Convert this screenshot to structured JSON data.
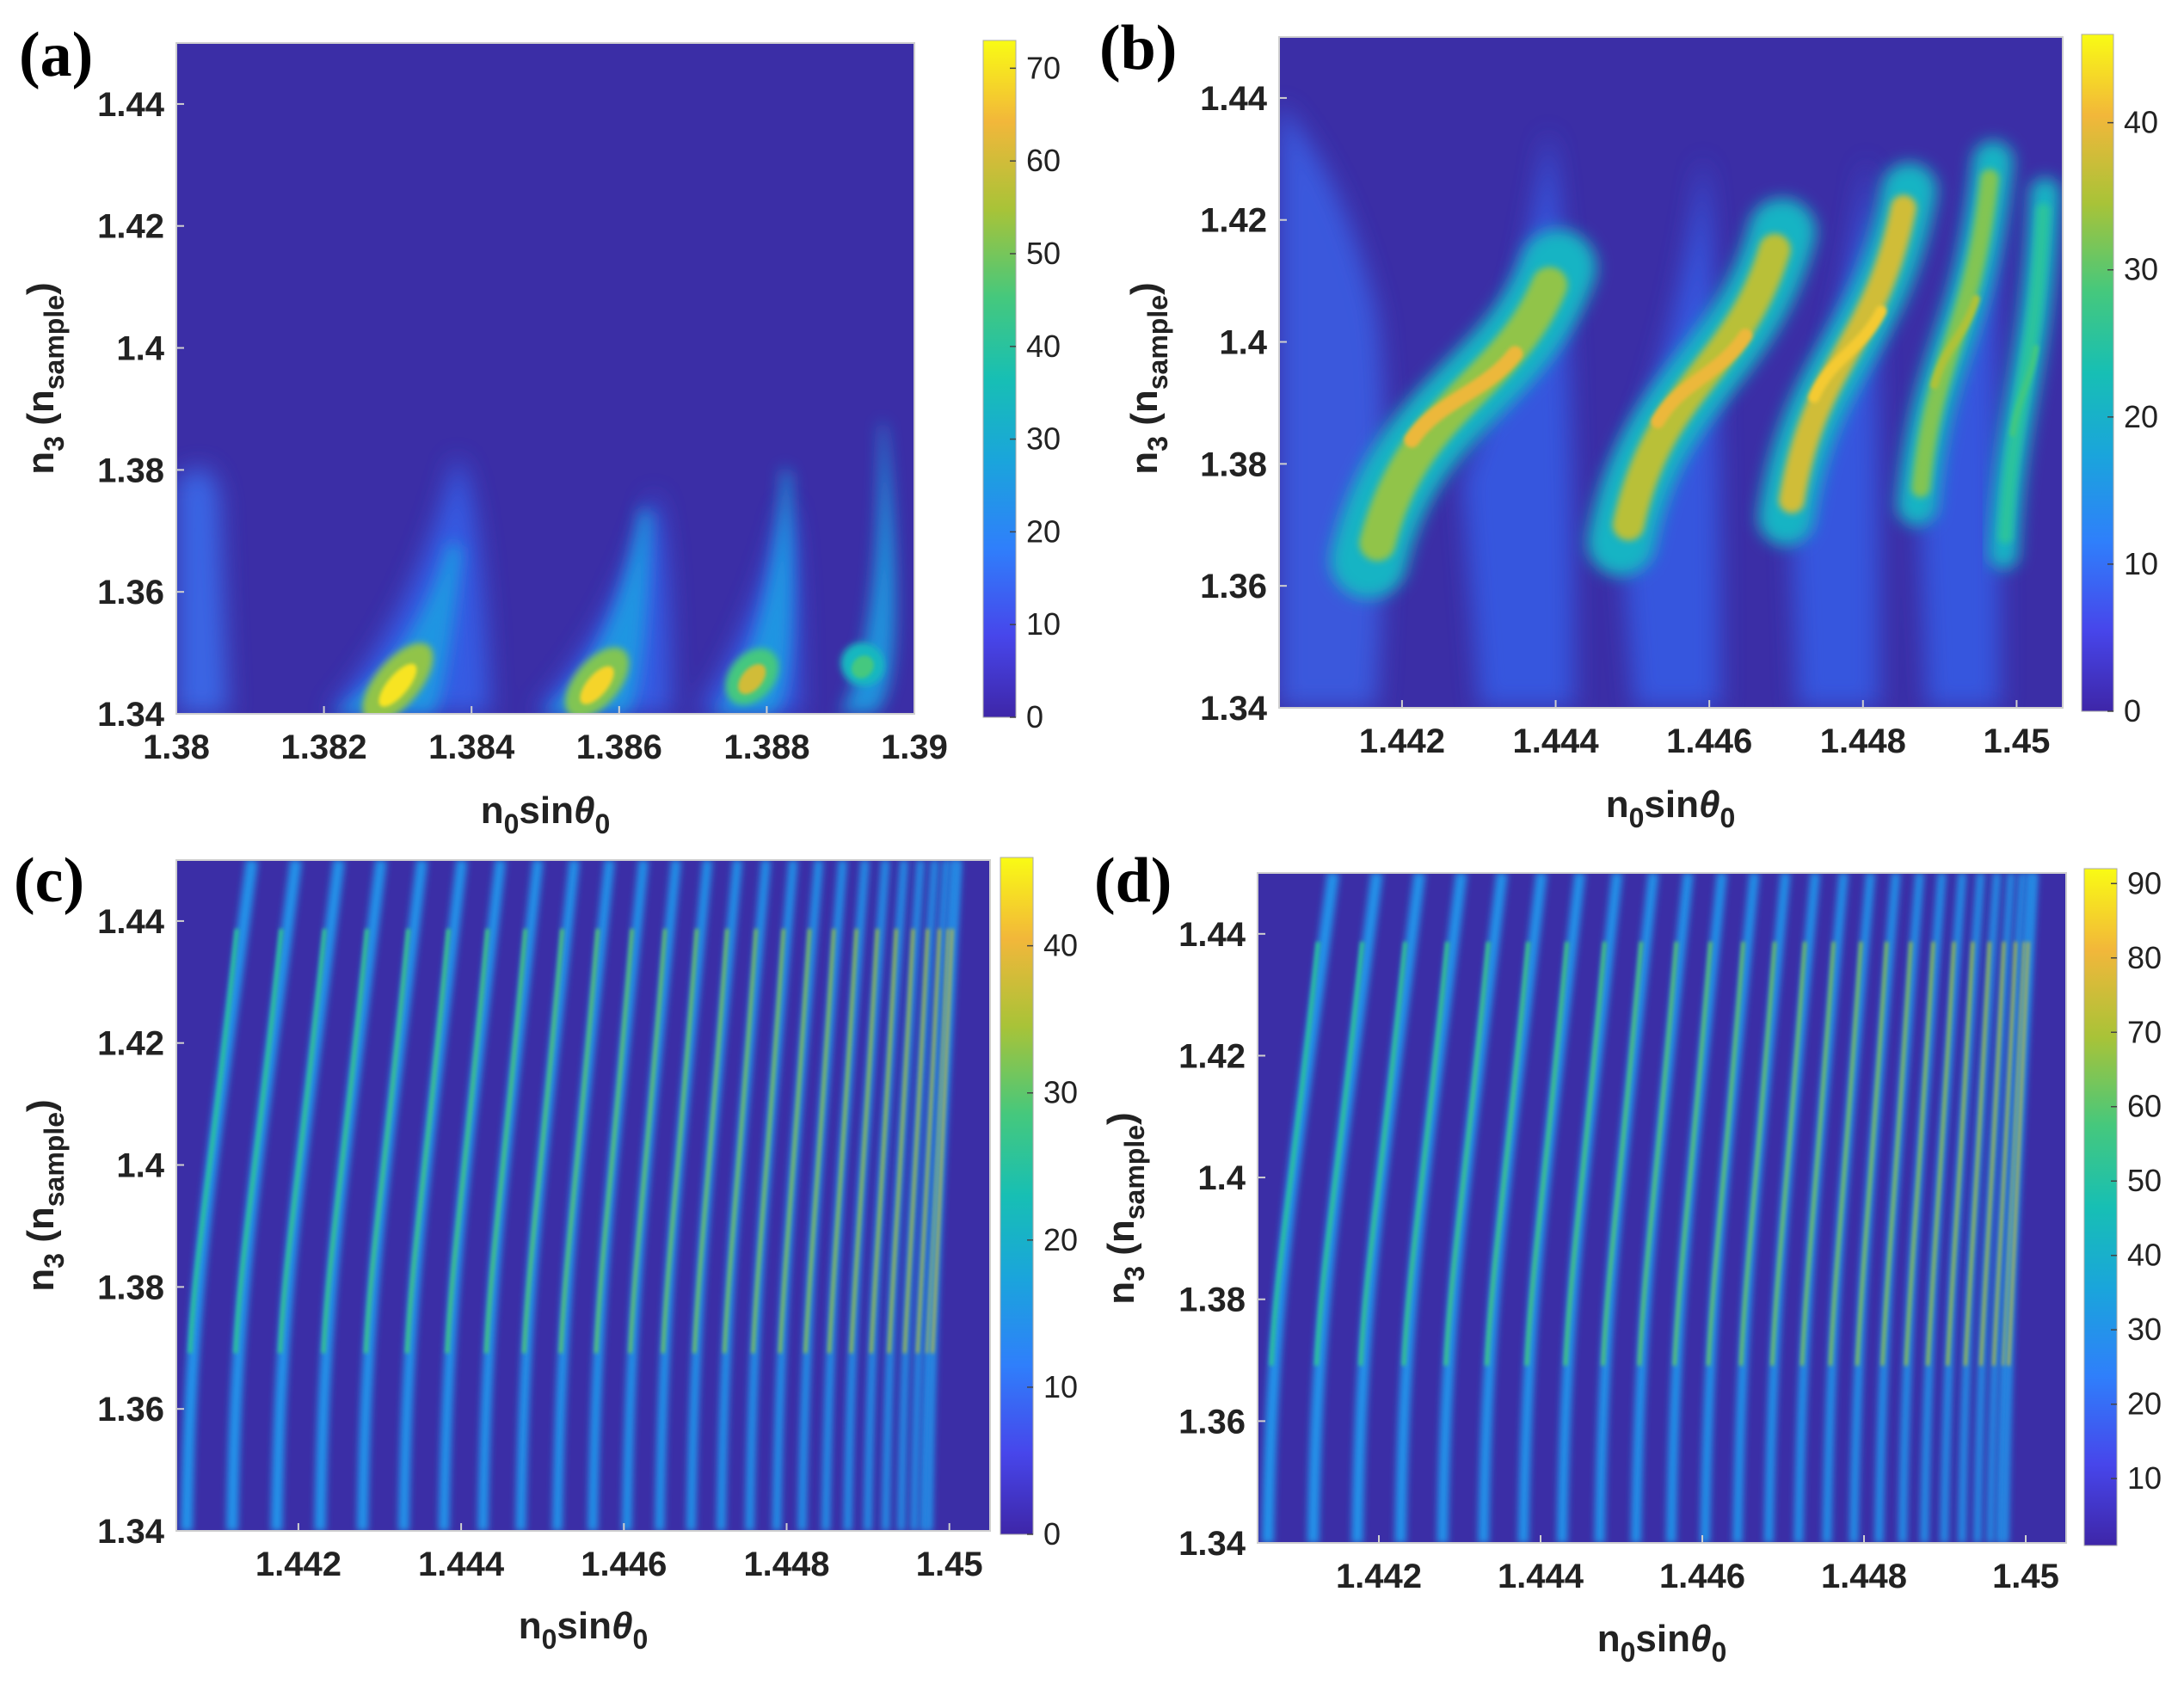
{
  "chart_data": [
    {
      "type": "heatmap",
      "panel_label": "(a)",
      "xlabel": "n0sinθ0",
      "ylabel": "n3 (nsample)",
      "xlim": [
        1.38,
        1.39
      ],
      "ylim": [
        1.34,
        1.45
      ],
      "x_ticks": [
        "1.38",
        "1.382",
        "1.384",
        "1.386",
        "1.388",
        "1.39"
      ],
      "y_ticks": [
        "1.34",
        "1.36",
        "1.38",
        "1.4",
        "1.42",
        "1.44"
      ],
      "colorbar": {
        "min": 0,
        "max": 73,
        "ticks": [
          "0",
          "10",
          "20",
          "30",
          "40",
          "50",
          "60",
          "70"
        ]
      },
      "resonances": [
        {
          "x_peak": 1.383,
          "y_peak": 1.343,
          "max_value": 70
        },
        {
          "x_peak": 1.3857,
          "y_peak": 1.343,
          "max_value": 68
        },
        {
          "x_peak": 1.3878,
          "y_peak": 1.344,
          "max_value": 60
        },
        {
          "x_peak": 1.3893,
          "y_peak": 1.346,
          "max_value": 45
        }
      ]
    },
    {
      "type": "heatmap",
      "panel_label": "(b)",
      "xlabel": "n0sinθ0",
      "ylabel": "n3 (nsample)",
      "xlim": [
        1.4404,
        1.4506
      ],
      "ylim": [
        1.34,
        1.45
      ],
      "x_ticks": [
        "1.442",
        "1.444",
        "1.446",
        "1.448",
        "1.45"
      ],
      "y_ticks": [
        "1.34",
        "1.36",
        "1.38",
        "1.4",
        "1.42",
        "1.44"
      ],
      "colorbar": {
        "min": 0,
        "max": 46,
        "ticks": [
          "0",
          "10",
          "20",
          "30",
          "40"
        ]
      },
      "resonances": [
        {
          "x_peak": 1.4428,
          "y_peak": 1.391,
          "max_value": 40
        },
        {
          "x_peak": 1.4459,
          "y_peak": 1.394,
          "max_value": 40
        },
        {
          "x_peak": 1.4478,
          "y_peak": 1.398,
          "max_value": 42
        },
        {
          "x_peak": 1.4492,
          "y_peak": 1.4,
          "max_value": 35
        },
        {
          "x_peak": 1.4501,
          "y_peak": 1.392,
          "max_value": 28
        }
      ]
    },
    {
      "type": "heatmap",
      "panel_label": "(c)",
      "xlabel": "n0sinθ0",
      "ylabel": "n3 (nsample)",
      "xlim": [
        1.4405,
        1.4505
      ],
      "ylim": [
        1.34,
        1.45
      ],
      "x_ticks": [
        "1.442",
        "1.444",
        "1.446",
        "1.448",
        "1.45"
      ],
      "y_ticks": [
        "1.34",
        "1.36",
        "1.38",
        "1.4",
        "1.42",
        "1.44"
      ],
      "colorbar": {
        "min": 0,
        "max": 46,
        "ticks": [
          "0",
          "10",
          "20",
          "30",
          "40"
        ]
      },
      "fringe_count": 26
    },
    {
      "type": "heatmap",
      "panel_label": "(d)",
      "xlabel": "n0sinθ0",
      "ylabel": "n3 (nsample)",
      "xlim": [
        1.4405,
        1.4505
      ],
      "ylim": [
        1.34,
        1.45
      ],
      "x_ticks": [
        "1.442",
        "1.444",
        "1.446",
        "1.448",
        "1.45"
      ],
      "y_ticks": [
        "1.34",
        "1.36",
        "1.38",
        "1.4",
        "1.42",
        "1.44"
      ],
      "colorbar": {
        "min": 1,
        "max": 92,
        "ticks": [
          "10",
          "20",
          "30",
          "40",
          "50",
          "60",
          "70",
          "80",
          "90"
        ]
      },
      "fringe_count": 26
    }
  ],
  "labels": {
    "x_main": "n",
    "x_sub": "0",
    "x_mid": "sin",
    "x_theta": "θ",
    "x_sub2": "0",
    "y_main": "n",
    "y_sub": "3",
    "y_open": " (n",
    "y_sub2": "sample",
    "y_close": ")"
  }
}
